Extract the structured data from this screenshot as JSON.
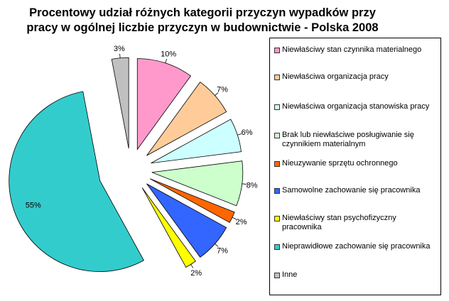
{
  "chart_data": {
    "type": "pie",
    "title": [
      "Procentowy udział różnych kategorii przyczyn wypadków przy",
      "pracy w ogólnej liczbie przyczyn w budownictwie - Polska 2008"
    ],
    "legend_position": "right",
    "slices": [
      {
        "label": "Niewłaściwy stan czynnika materialnego",
        "value": 10,
        "data_label": "10%",
        "color": "#FF99CC"
      },
      {
        "label": "Niewłaściwa organizacja pracy",
        "value": 7,
        "data_label": "7%",
        "color": "#FFCC99"
      },
      {
        "label": "Niewłaściwa organizacja stanowiska pracy",
        "value": 6,
        "data_label": "6%",
        "color": "#CCFFFF"
      },
      {
        "label": "Brak lub niewłaściwe posługiwanie się czynnikiem materialnym",
        "value": 8,
        "data_label": "8%",
        "color": "#CCFFCC"
      },
      {
        "label": "Nieuzywanie sprzętu ochronnego",
        "value": 2,
        "data_label": "2%",
        "color": "#FF6600"
      },
      {
        "label": "Samowolne zachowanie się pracownika",
        "value": 7,
        "data_label": "7%",
        "color": "#3366FF"
      },
      {
        "label": "Niewłaściwy stan psychofizyczny pracownika",
        "value": 2,
        "data_label": "2%",
        "color": "#FFFF00"
      },
      {
        "label": "Nieprawidłowe zachowanie się pracownika",
        "value": 55,
        "data_label": "55%",
        "color": "#33CCCC"
      },
      {
        "label": "Inne",
        "value": 3,
        "data_label": "3%",
        "color": "#C0C0C0"
      }
    ]
  }
}
